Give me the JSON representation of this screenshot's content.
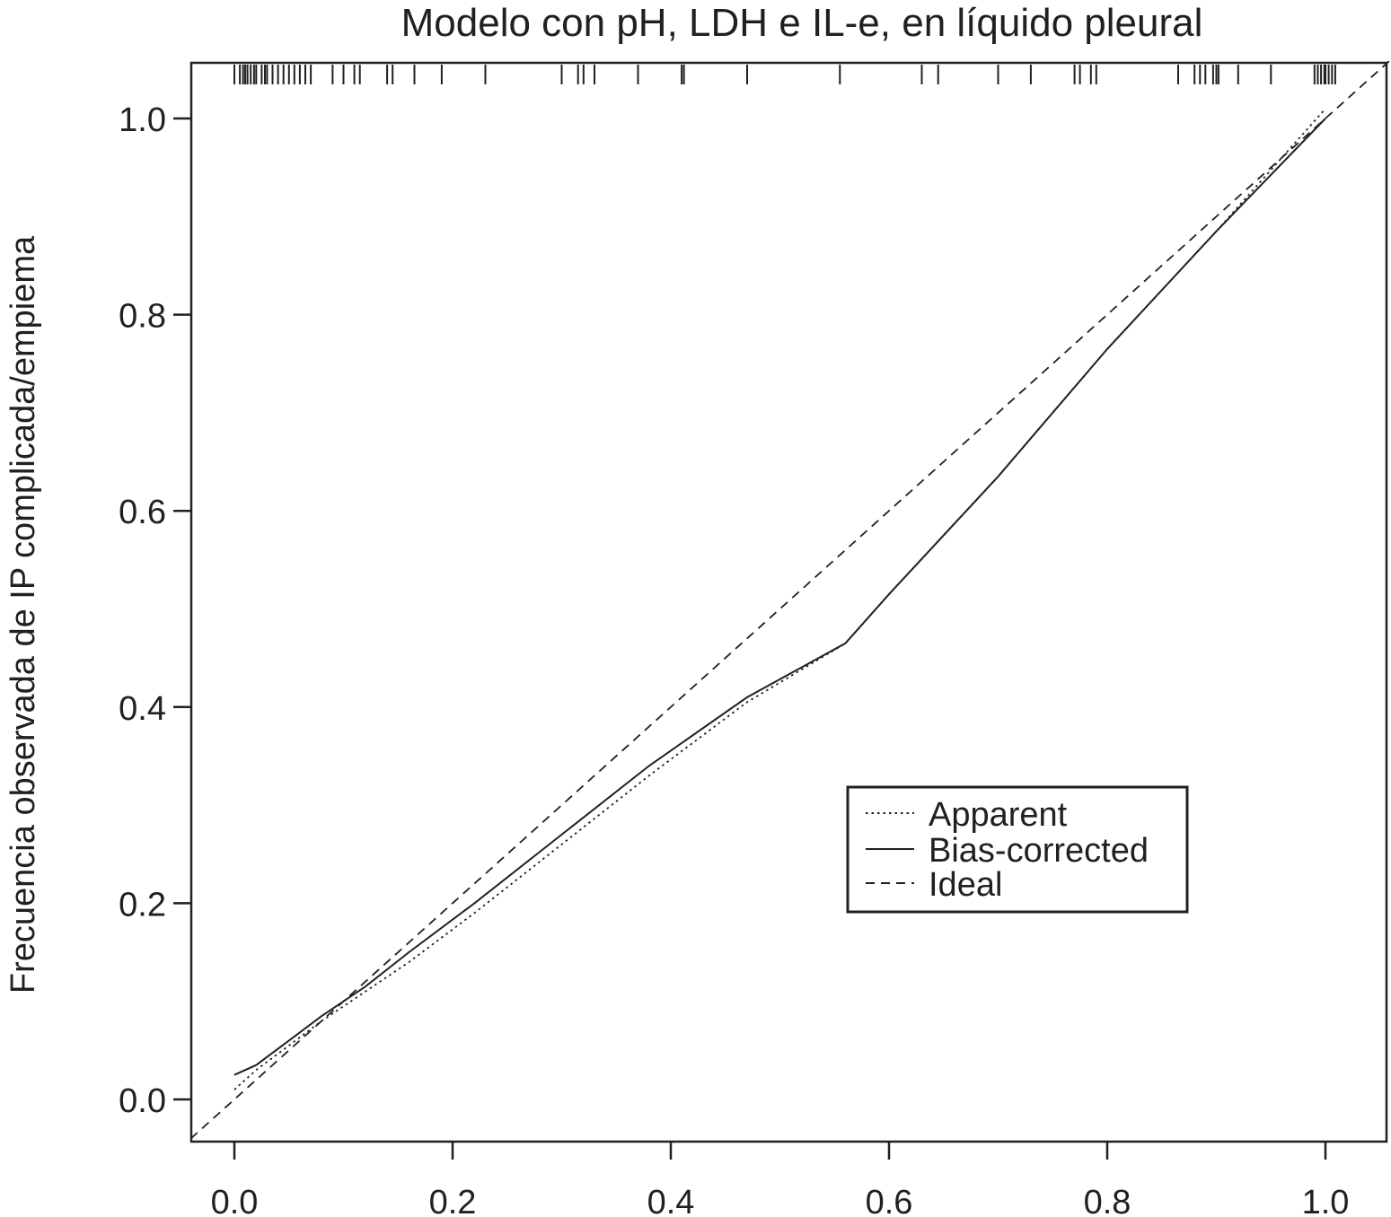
{
  "chart_data": {
    "type": "line",
    "title": "Modelo con pH, LDH e IL-e, en líquido pleural",
    "xlabel": "",
    "ylabel": "Frecuencia observada de IP complicada/empiema",
    "xlim": [
      -0.04,
      1.06
    ],
    "ylim": [
      -0.04,
      1.06
    ],
    "x_ticks": [
      "0.0",
      "0.2",
      "0.4",
      "0.6",
      "0.8",
      "1.0"
    ],
    "y_ticks": [
      "0.0",
      "0.2",
      "0.4",
      "0.6",
      "0.8",
      "1.0"
    ],
    "grid": false,
    "legend_position": "center-right",
    "series": [
      {
        "name": "Apparent",
        "style": "dotted",
        "x": [
          0.0,
          0.02,
          0.05,
          0.08,
          0.12,
          0.16,
          0.22,
          0.3,
          0.38,
          0.47,
          0.56,
          0.6,
          0.7,
          0.8,
          0.9,
          1.0
        ],
        "y": [
          0.01,
          0.03,
          0.055,
          0.08,
          0.11,
          0.14,
          0.19,
          0.26,
          0.33,
          0.405,
          0.465,
          0.515,
          0.635,
          0.765,
          0.885,
          1.01
        ]
      },
      {
        "name": "Bias-corrected",
        "style": "solid",
        "x": [
          0.0,
          0.02,
          0.05,
          0.08,
          0.12,
          0.16,
          0.22,
          0.3,
          0.38,
          0.47,
          0.56,
          0.6,
          0.7,
          0.8,
          0.9,
          1.0
        ],
        "y": [
          0.025,
          0.035,
          0.06,
          0.085,
          0.115,
          0.15,
          0.2,
          0.27,
          0.34,
          0.41,
          0.465,
          0.515,
          0.635,
          0.765,
          0.885,
          1.0
        ]
      },
      {
        "name": "Ideal",
        "style": "dashed",
        "x": [
          -0.04,
          1.06
        ],
        "y": [
          -0.04,
          1.06
        ]
      }
    ],
    "rug": [
      0.0,
      0.005,
      0.008,
      0.01,
      0.012,
      0.015,
      0.018,
      0.02,
      0.025,
      0.028,
      0.03,
      0.035,
      0.04,
      0.045,
      0.05,
      0.055,
      0.06,
      0.065,
      0.07,
      0.09,
      0.1,
      0.11,
      0.115,
      0.14,
      0.145,
      0.165,
      0.19,
      0.23,
      0.3,
      0.315,
      0.32,
      0.33,
      0.37,
      0.41,
      0.412,
      0.47,
      0.555,
      0.63,
      0.645,
      0.7,
      0.73,
      0.77,
      0.775,
      0.785,
      0.79,
      0.865,
      0.88,
      0.885,
      0.89,
      0.897,
      0.9,
      0.902,
      0.92,
      0.95,
      0.99,
      0.993,
      0.996,
      0.999,
      1.0,
      1.003,
      1.006,
      1.009
    ]
  }
}
